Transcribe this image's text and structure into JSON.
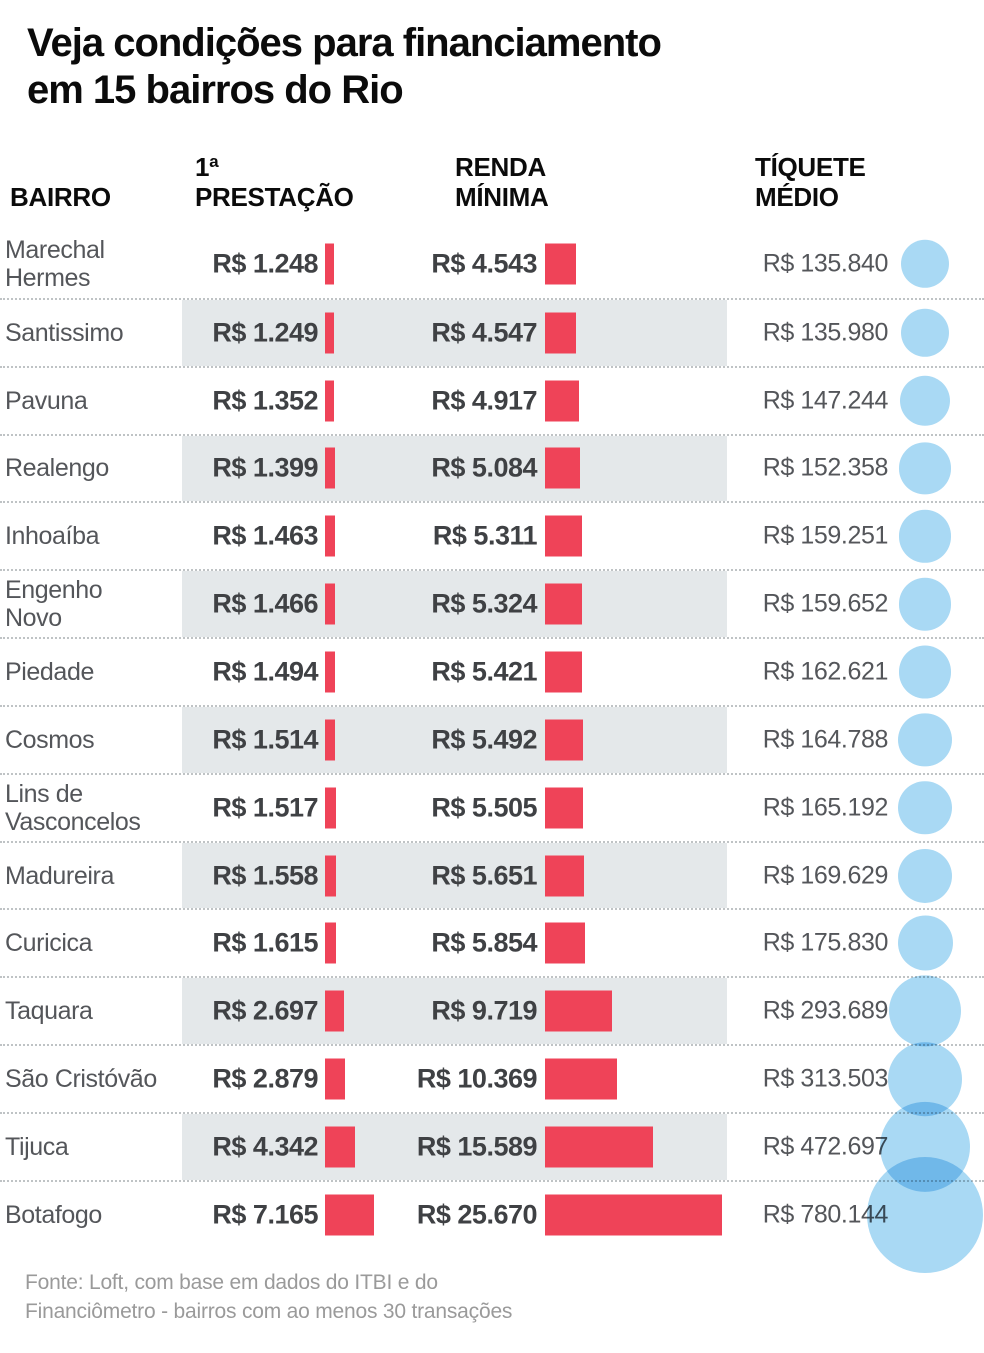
{
  "title_lines": [
    "Veja condições para financiamento",
    "em 15 bairros do Rio"
  ],
  "columns": {
    "bairro": "BAIRRO",
    "prestacao_line1": "1ª",
    "prestacao_line2": "PRESTAÇÃO",
    "renda_line1": "RENDA",
    "renda_line2": "MÍNIMA",
    "tiquete_line1": "TÍQUETE",
    "tiquete_line2": "MÉDIO"
  },
  "rows": [
    {
      "name": "Marechal\nHermes",
      "prestacao": "R$ 1.248",
      "renda": "R$ 4.543",
      "tiquete": "R$ 135.840"
    },
    {
      "name": "Santissimo",
      "prestacao": "R$ 1.249",
      "renda": "R$ 4.547",
      "tiquete": "R$ 135.980"
    },
    {
      "name": "Pavuna",
      "prestacao": "R$ 1.352",
      "renda": "R$ 4.917",
      "tiquete": "R$ 147.244"
    },
    {
      "name": "Realengo",
      "prestacao": "R$ 1.399",
      "renda": "R$ 5.084",
      "tiquete": "R$ 152.358"
    },
    {
      "name": "Inhoaíba",
      "prestacao": "R$ 1.463",
      "renda": "R$ 5.311",
      "tiquete": "R$ 159.251"
    },
    {
      "name": "Engenho\nNovo",
      "prestacao": "R$ 1.466",
      "renda": "R$ 5.324",
      "tiquete": "R$ 159.652"
    },
    {
      "name": "Piedade",
      "prestacao": "R$ 1.494",
      "renda": "R$ 5.421",
      "tiquete": "R$ 162.621"
    },
    {
      "name": "Cosmos",
      "prestacao": "R$ 1.514",
      "renda": "R$ 5.492",
      "tiquete": "R$ 164.788"
    },
    {
      "name": "Lins de\nVasconcelos",
      "prestacao": "R$ 1.517",
      "renda": "R$ 5.505",
      "tiquete": "R$ 165.192"
    },
    {
      "name": "Madureira",
      "prestacao": "R$ 1.558",
      "renda": "R$ 5.651",
      "tiquete": "R$ 169.629"
    },
    {
      "name": "Curicica",
      "prestacao": "R$ 1.615",
      "renda": "R$ 5.854",
      "tiquete": "R$ 175.830"
    },
    {
      "name": "Taquara",
      "prestacao": "R$ 2.697",
      "renda": "R$ 9.719",
      "tiquete": "R$ 293.689"
    },
    {
      "name": "São Cristóvão",
      "prestacao": "R$ 2.879",
      "renda": "R$ 10.369",
      "tiquete": "R$ 313.503"
    },
    {
      "name": "Tijuca",
      "prestacao": "R$ 4.342",
      "renda": "R$ 15.589",
      "tiquete": "R$ 472.697"
    },
    {
      "name": "Botafogo",
      "prestacao": "R$ 7.165",
      "renda": "R$ 25.670",
      "tiquete": "R$ 780.144"
    }
  ],
  "footer_lines": [
    "Fonte: Loft, com base em dados do ITBI e do",
    "Financiômetro - bairros com ao menos 30 transações"
  ],
  "colors": {
    "bar": "#ef4358",
    "bubble": "#a9d9f4",
    "bubble_overlap": "#5fb2e2",
    "row_band": "#e4e8ea",
    "separator": "#bfc3c5",
    "title_text": "#0b0b0b",
    "value_text": "#3f4144",
    "label_text": "#54565a",
    "footer_text": "#9a9a9a"
  },
  "chart_data": {
    "type": "bar",
    "title": "Veja condições para financiamento em 15 bairros do Rio",
    "categories": [
      "Marechal Hermes",
      "Santissimo",
      "Pavuna",
      "Realengo",
      "Inhoaíba",
      "Engenho Novo",
      "Piedade",
      "Cosmos",
      "Lins de Vasconcelos",
      "Madureira",
      "Curicica",
      "Taquara",
      "São Cristóvão",
      "Tijuca",
      "Botafogo"
    ],
    "series": [
      {
        "name": "1ª Prestação (R$)",
        "encoding": "bar-width",
        "color": "#ef4358",
        "values": [
          1248,
          1249,
          1352,
          1399,
          1463,
          1466,
          1494,
          1514,
          1517,
          1558,
          1615,
          2697,
          2879,
          4342,
          7165
        ]
      },
      {
        "name": "Renda Mínima (R$)",
        "encoding": "bar-width",
        "color": "#ef4358",
        "values": [
          4543,
          4547,
          4917,
          5084,
          5311,
          5324,
          5421,
          5492,
          5505,
          5651,
          5854,
          9719,
          10369,
          15589,
          25670
        ]
      },
      {
        "name": "Tíquete Médio (R$)",
        "encoding": "bubble-area",
        "color": "#a9d9f4",
        "values": [
          135840,
          135980,
          147244,
          152358,
          159251,
          159652,
          162621,
          164788,
          165192,
          169629,
          175830,
          293689,
          313503,
          472697,
          780144
        ]
      }
    ],
    "legend_position": "none",
    "grid": false,
    "source": "Fonte: Loft, com base em dados do ITBI e do Financiômetro - bairros com ao menos 30 transações"
  }
}
